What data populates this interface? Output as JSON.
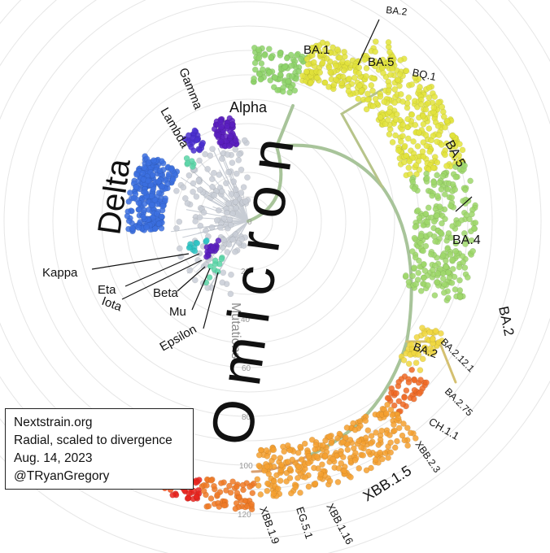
{
  "info": {
    "source": "Nextstrain.org",
    "layout": "Radial, scaled to divergence",
    "date": "Aug. 14, 2023",
    "author": "@TRyanGregory"
  },
  "axis": {
    "title": "Mutations",
    "ticks": [
      "0",
      "20",
      "40",
      "60",
      "80",
      "100",
      "120"
    ]
  },
  "labels": {
    "big_delta": "Delta",
    "big_omicron": "Omicron",
    "alpha": "Alpha",
    "gamma": "Gamma",
    "lambda": "Lambda",
    "kappa": "Kappa",
    "eta": "Eta",
    "iota": "Iota",
    "beta": "Beta",
    "mu": "Mu",
    "epsilon": "Epsilon",
    "ba1": "BA.1",
    "ba2_top": "BA.2",
    "ba5_top": "BA.5",
    "bq1": "BQ.1",
    "ba5": "BA.5",
    "ba4": "BA.4",
    "ba2_right": "BA.2",
    "ba2121": "BA.2.12.1",
    "ba2_mid": "BA.2",
    "ba275": "BA.2.75",
    "ch11": "CH.1.1",
    "xbb23": "XBB.2.3",
    "xbb15": "XBB.1.5",
    "xbb116": "XBB.1.16",
    "eg51": "EG.5.1",
    "xbb19": "XBB.1.9"
  },
  "colors": {
    "delta": "#3b6fe0",
    "alpha": "#5b1fc0",
    "gamma": "#4a2fd0",
    "omicron_ba1": "#8fd46a",
    "omicron_ba5": "#e2e23a",
    "omicron_ba2": "#9ed86a",
    "xbb": "#f5a030",
    "eg51": "#e8251f",
    "grey_basal": "#c8cdd6"
  }
}
